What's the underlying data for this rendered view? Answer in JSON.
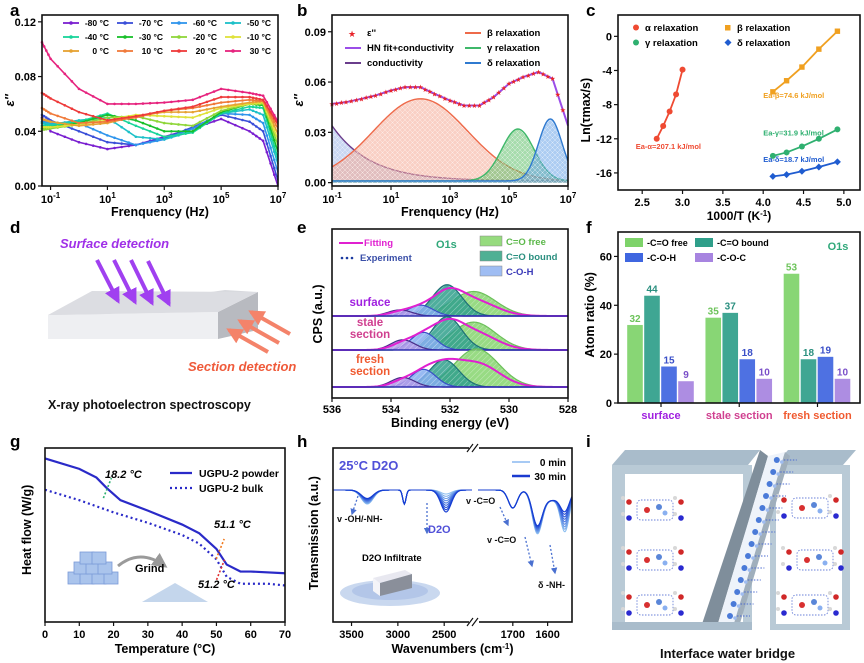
{
  "chart_data": [
    {
      "panel": "a",
      "type": "line",
      "xscale": "log",
      "xlabel": "Frenquency (Hz)",
      "ylabel": "ε''",
      "xlim": [
        0.05,
        10000000
      ],
      "ylim": [
        0,
        0.125
      ],
      "xticks": [
        {
          "v": 0.1,
          "l": "10-1"
        },
        {
          "v": 10,
          "l": "101"
        },
        {
          "v": 1000,
          "l": "103"
        },
        {
          "v": 100000,
          "l": "105"
        },
        {
          "v": 10000000,
          "l": "107"
        }
      ],
      "yticks": [
        {
          "v": 0,
          "l": "0.00"
        },
        {
          "v": 0.04,
          "l": "0.04"
        },
        {
          "v": 0.08,
          "l": "0.08"
        },
        {
          "v": 0.12,
          "l": "0.12"
        }
      ],
      "x": [
        0.05,
        0.1,
        1,
        10,
        100,
        1000,
        10000,
        100000,
        1000000,
        3000000,
        10000000
      ],
      "series": [
        {
          "name": "-80 °C",
          "color": "#7a1fd0",
          "values": [
            0.05,
            0.04,
            0.032,
            0.027,
            0.03,
            0.036,
            0.042,
            0.049,
            0.04,
            0.033,
            0.0
          ]
        },
        {
          "name": "-70 °C",
          "color": "#3a4fd8",
          "values": [
            0.052,
            0.048,
            0.04,
            0.032,
            0.03,
            0.035,
            0.043,
            0.052,
            0.047,
            0.04,
            0.004
          ]
        },
        {
          "name": "-60 °C",
          "color": "#2f95ec",
          "values": [
            0.047,
            0.046,
            0.046,
            0.037,
            0.03,
            0.034,
            0.042,
            0.053,
            0.052,
            0.046,
            0.01
          ]
        },
        {
          "name": "-50 °C",
          "color": "#1cc0c8",
          "values": [
            0.046,
            0.045,
            0.048,
            0.05,
            0.036,
            0.034,
            0.04,
            0.053,
            0.056,
            0.052,
            0.016
          ]
        },
        {
          "name": "-40 °C",
          "color": "#19d49a",
          "values": [
            0.044,
            0.044,
            0.047,
            0.053,
            0.044,
            0.036,
            0.039,
            0.053,
            0.058,
            0.057,
            0.02
          ]
        },
        {
          "name": "-30 °C",
          "color": "#18c02a",
          "values": [
            0.042,
            0.043,
            0.046,
            0.052,
            0.048,
            0.04,
            0.04,
            0.054,
            0.06,
            0.059,
            0.025
          ]
        },
        {
          "name": "-20 °C",
          "color": "#8fd63a",
          "values": [
            0.041,
            0.042,
            0.045,
            0.05,
            0.051,
            0.046,
            0.044,
            0.055,
            0.06,
            0.06,
            0.03
          ]
        },
        {
          "name": "-10 °C",
          "color": "#dfe23a",
          "values": [
            0.043,
            0.043,
            0.045,
            0.048,
            0.052,
            0.051,
            0.05,
            0.057,
            0.06,
            0.061,
            0.034
          ]
        },
        {
          "name": "0 °C",
          "color": "#e6a232",
          "values": [
            0.049,
            0.047,
            0.044,
            0.046,
            0.051,
            0.054,
            0.054,
            0.058,
            0.061,
            0.062,
            0.038
          ]
        },
        {
          "name": "10 °C",
          "color": "#f07a3a",
          "values": [
            0.057,
            0.053,
            0.046,
            0.047,
            0.05,
            0.055,
            0.057,
            0.061,
            0.063,
            0.062,
            0.042
          ]
        },
        {
          "name": "20 °C",
          "color": "#ee3a3a",
          "values": [
            0.068,
            0.064,
            0.054,
            0.048,
            0.051,
            0.055,
            0.058,
            0.065,
            0.065,
            0.063,
            0.045
          ]
        },
        {
          "name": "30 °C",
          "color": "#e6237e",
          "values": [
            0.105,
            0.093,
            0.071,
            0.06,
            0.06,
            0.061,
            0.063,
            0.071,
            0.068,
            0.066,
            0.047
          ]
        }
      ]
    },
    {
      "panel": "b",
      "type": "area",
      "xscale": "log",
      "xlabel": "Frenquency (Hz)",
      "ylabel": "ε''",
      "xlim": [
        0.1,
        10000000
      ],
      "ylim": [
        -0.002,
        0.1
      ],
      "xticks": [
        {
          "v": 0.1,
          "l": "10-1"
        },
        {
          "v": 10,
          "l": "101"
        },
        {
          "v": 1000,
          "l": "103"
        },
        {
          "v": 100000,
          "l": "105"
        },
        {
          "v": 10000000,
          "l": "107"
        }
      ],
      "yticks": [
        {
          "v": 0,
          "l": "0.00"
        },
        {
          "v": 0.03,
          "l": "0.03"
        },
        {
          "v": 0.06,
          "l": "0.06"
        },
        {
          "v": 0.09,
          "l": "0.09"
        }
      ],
      "legend": [
        {
          "name": "ε''",
          "color": "#e8232a",
          "marker": "star"
        },
        {
          "name": "HN fit+conductivity",
          "color": "#9b4de8",
          "marker": "line"
        },
        {
          "name": "conductivity",
          "color": "#6a3d8c",
          "marker": "line"
        },
        {
          "name": "β relaxation",
          "color": "#ee6a4a",
          "marker": "line"
        },
        {
          "name": "γ relaxation",
          "color": "#3fb86a",
          "marker": "line"
        },
        {
          "name": "δ relaxation",
          "color": "#2f7ad0",
          "marker": "line"
        }
      ],
      "measured": {
        "x": [
          0.1,
          0.3,
          1,
          3,
          10,
          30,
          100,
          300,
          1000,
          3000,
          10000,
          30000,
          100000,
          300000,
          1000000,
          3000000,
          10000000
        ],
        "y": [
          0.047,
          0.048,
          0.05,
          0.052,
          0.055,
          0.057,
          0.057,
          0.053,
          0.049,
          0.046,
          0.046,
          0.051,
          0.059,
          0.063,
          0.066,
          0.062,
          0.034
        ]
      },
      "components": [
        {
          "name": "conductivity",
          "center_log": -1.2,
          "peak": 0.033,
          "width": 1.6,
          "color": "#6a3d8c"
        },
        {
          "name": "β relaxation",
          "center_log": 2.0,
          "peak": 0.049,
          "width": 1.6,
          "color": "#ee6a4a"
        },
        {
          "name": "γ relaxation",
          "center_log": 5.3,
          "peak": 0.031,
          "width": 0.55,
          "color": "#3fb86a"
        },
        {
          "name": "δ relaxation",
          "center_log": 6.4,
          "peak": 0.037,
          "width": 0.4,
          "color": "#2f7ad0"
        }
      ]
    },
    {
      "panel": "c",
      "type": "scatter",
      "xlabel": "1000/T (K-1)",
      "ylabel": "Ln(τmax/s)",
      "xlim": [
        2.2,
        5.2
      ],
      "ylim": [
        -18,
        2.5
      ],
      "xticks": [
        2.5,
        3.0,
        3.5,
        4.0,
        4.5,
        5.0
      ],
      "yticks": [
        0,
        -4,
        -8,
        -12,
        -16
      ],
      "series": [
        {
          "name": "α relaxation",
          "color": "#ef4a32",
          "marker": "circle",
          "x": [
            2.68,
            2.76,
            2.84,
            2.92,
            3.0
          ],
          "y": [
            -12.0,
            -10.5,
            -8.8,
            -6.8,
            -3.9
          ],
          "annotation": "Ea-α=207.1 kJ/mol"
        },
        {
          "name": "β relaxation",
          "color": "#f0a020",
          "marker": "square",
          "x": [
            4.12,
            4.29,
            4.48,
            4.69,
            4.92
          ],
          "y": [
            -6.5,
            -5.2,
            -3.6,
            -1.5,
            0.6
          ],
          "annotation": "Ea-β=74.6 kJ/mol"
        },
        {
          "name": "γ relaxation",
          "color": "#2fb070",
          "marker": "circle",
          "x": [
            4.12,
            4.29,
            4.48,
            4.69,
            4.92
          ],
          "y": [
            -14.0,
            -13.6,
            -12.9,
            -12.0,
            -10.9
          ],
          "annotation": "Ea-γ=31.9 kJ/mol"
        },
        {
          "name": "δ relaxation",
          "color": "#1f5cd0",
          "marker": "diamond",
          "x": [
            4.12,
            4.29,
            4.48,
            4.69,
            4.92
          ],
          "y": [
            -16.4,
            -16.2,
            -15.8,
            -15.3,
            -14.7
          ],
          "annotation": "Ea-δ=18.7 kJ/mol"
        }
      ]
    },
    {
      "panel": "e",
      "type": "area",
      "xlabel": "Binding energy (eV)",
      "ylabel": "CPS (a.u.)",
      "xlim": [
        536,
        528
      ],
      "xticks": [
        536,
        534,
        532,
        530,
        528
      ],
      "title_annotation": "O1s",
      "legend": [
        {
          "name": "Fitting",
          "color": "#e020d0",
          "marker": "line"
        },
        {
          "name": "Experiment",
          "color": "#1a3aa0",
          "marker": "dots"
        },
        {
          "name": "C=O free",
          "color": "#7ed36a"
        },
        {
          "name": "C=O bound",
          "color": "#2fa08a"
        },
        {
          "name": "C-O-H",
          "color": "#7da6ee"
        }
      ],
      "rows": [
        {
          "name": "surface",
          "label_color": "#a020e0",
          "peaks": [
            {
              "comp": "C-O-C",
              "center": 533.7,
              "height": 0.18
            },
            {
              "comp": "C-O-H",
              "center": 533.0,
              "height": 0.32
            },
            {
              "comp": "C=O bound",
              "center": 532.1,
              "height": 0.92
            },
            {
              "comp": "C=O free",
              "center": 531.2,
              "height": 0.72
            }
          ]
        },
        {
          "name": "stale section",
          "label_color": "#d04090",
          "peaks": [
            {
              "comp": "C-O-C",
              "center": 533.6,
              "height": 0.3
            },
            {
              "comp": "C-O-H",
              "center": 532.9,
              "height": 0.52
            },
            {
              "comp": "C=O bound",
              "center": 532.1,
              "height": 0.98
            },
            {
              "comp": "C=O free",
              "center": 531.2,
              "height": 0.82
            }
          ]
        },
        {
          "name": "fresh section",
          "label_color": "#f05a30",
          "peaks": [
            {
              "comp": "C-O-C",
              "center": 533.6,
              "height": 0.28
            },
            {
              "comp": "C-O-H",
              "center": 532.9,
              "height": 0.52
            },
            {
              "comp": "C=O bound",
              "center": 532.2,
              "height": 0.8
            },
            {
              "comp": "C=O free",
              "center": 531.1,
              "height": 1.12
            }
          ]
        }
      ]
    },
    {
      "panel": "f",
      "type": "bar",
      "ylabel": "Atom ratio (%)",
      "ylim": [
        0,
        70
      ],
      "yticks": [
        0,
        20,
        40,
        60
      ],
      "title_annotation": "O1s",
      "categories": [
        {
          "name": "surface",
          "color": "#a020e0"
        },
        {
          "name": "stale section",
          "color": "#d04090"
        },
        {
          "name": "fresh section",
          "color": "#f05a30"
        }
      ],
      "series": [
        {
          "name": "-C=O free",
          "color": "#7ed36a",
          "label_color": "#6cc35a",
          "values": [
            32,
            35,
            53
          ]
        },
        {
          "name": "-C=O bound",
          "color": "#2f9f8a",
          "label_color": "#2a8f7f",
          "values": [
            44,
            37,
            18
          ]
        },
        {
          "name": "-C-O-H",
          "color": "#3f66e0",
          "label_color": "#3a4fc8",
          "values": [
            15,
            18,
            19
          ]
        },
        {
          "name": "-C-O-C",
          "color": "#a784e0",
          "label_color": "#7a4fc8",
          "values": [
            9,
            10,
            10
          ]
        }
      ]
    },
    {
      "panel": "g",
      "type": "line",
      "xlabel": "Temperature (°C)",
      "ylabel": "Heat flow (W/g)",
      "xlim": [
        0,
        70
      ],
      "ylim": [
        0,
        1
      ],
      "xticks": [
        0,
        10,
        20,
        30,
        40,
        50,
        60,
        70
      ],
      "series": [
        {
          "name": "UGPU-2 powder",
          "style": "solid",
          "color": "#2a2ac8",
          "x": [
            0,
            10,
            15,
            18,
            22,
            30,
            40,
            45,
            50,
            53,
            57,
            60,
            70
          ],
          "y": [
            0.94,
            0.88,
            0.83,
            0.77,
            0.7,
            0.64,
            0.56,
            0.51,
            0.42,
            0.33,
            0.29,
            0.29,
            0.28
          ]
        },
        {
          "name": "UGPU-2 bulk",
          "style": "dotted",
          "color": "#2a2ac8",
          "x": [
            0,
            10,
            20,
            30,
            40,
            45,
            50,
            53,
            57,
            60,
            65,
            70
          ],
          "y": [
            0.76,
            0.7,
            0.63,
            0.57,
            0.5,
            0.45,
            0.36,
            0.26,
            0.22,
            0.22,
            0.22,
            0.21
          ]
        }
      ],
      "annotations": [
        {
          "text": "18.2 °C",
          "x": 18.2,
          "color": "#2fb070"
        },
        {
          "text": "51.1 °C",
          "x": 51.1,
          "color": "#f07a20"
        },
        {
          "text": "51.2 °C",
          "x": 51.2,
          "color": "#e03030"
        }
      ],
      "inset_label": "Grind"
    },
    {
      "panel": "h",
      "type": "line",
      "xlabel": "Wavenumbers (cm-1)",
      "ylabel": "Transmission (a.u.)",
      "xticks_left": [
        3500,
        3000,
        2500
      ],
      "xticks_right": [
        1700,
        1600
      ],
      "title_annotation": "25°C D2O",
      "legend": [
        {
          "name": "0 min",
          "color": "#8ab8f0"
        },
        {
          "name": "30 min",
          "color": "#1a3ad0"
        }
      ],
      "annotations": [
        "v -OH/-NH-",
        "D2O",
        "v -C=O",
        "v -C=O",
        "δ -NH-",
        "D2O Infiltrate"
      ]
    }
  ],
  "panel_labels": [
    "a",
    "b",
    "c",
    "d",
    "e",
    "f",
    "g",
    "h",
    "i"
  ],
  "panel_d": {
    "surface_label": "Surface detection",
    "section_label": "Section detection",
    "caption": "X-ray photoelectron spectroscopy"
  },
  "panel_i": {
    "caption": "Interface water bridge"
  }
}
